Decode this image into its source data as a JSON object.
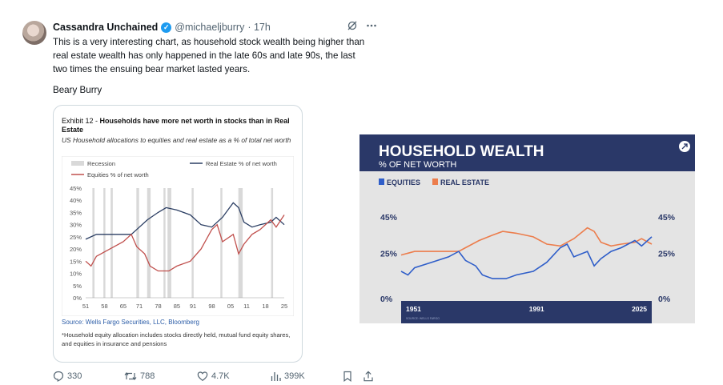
{
  "tweet": {
    "author_name": "Cassandra Unchained",
    "handle": "@michaeljburry",
    "time": "· 17h",
    "text": "This is a very interesting chart, as household stock wealth being higher than\nreal estate wealth has only happened in the late 60s and late 90s, the last\ntwo times the ensuing bear market lasted years.",
    "signoff": "Beary Burry",
    "icons": [
      "verified-badge-icon",
      "grok-icon",
      "more-icon"
    ]
  },
  "exhibit": {
    "label": "Exhibit 12 - ",
    "title": "Households have more net worth in stocks than in Real Estate",
    "subtitle": "US Household allocations to equities and real estate as a % of total net worth",
    "source": "Source: Wells Fargo Securities, LLC, Bloomberg",
    "note": "*Household equity allocation includes stocks directly held, mutual fund equity shares, and equities in insurance and pensions"
  },
  "actions": {
    "replies": "330",
    "reposts": "788",
    "likes": "4.7K",
    "views": "399K"
  },
  "chart_data": [
    {
      "type": "line",
      "legend": [
        "Recession",
        "Real Estate % of net worth",
        "Equities % of net worth"
      ],
      "legend_placement": "top",
      "colors": {
        "real_estate": "#2b3e63",
        "equities": "#c0504d",
        "recession": "#d9d9d9"
      },
      "x_ticks": [
        "51",
        "58",
        "65",
        "71",
        "78",
        "85",
        "91",
        "98",
        "05",
        "11",
        "18",
        "25"
      ],
      "y_ticks": [
        "45%",
        "40%",
        "35%",
        "30%",
        "25%",
        "20%",
        "15%",
        "10%",
        "5%",
        "0%"
      ],
      "xlim": [
        1951,
        2025
      ],
      "ylim": [
        0,
        45
      ],
      "grid": false,
      "recessions": [
        [
          1953.5,
          1954.3
        ],
        [
          1957.6,
          1958.3
        ],
        [
          1960.3,
          1961.1
        ],
        [
          1969.9,
          1970.9
        ],
        [
          1973.9,
          1975.2
        ],
        [
          1980.0,
          1980.6
        ],
        [
          1981.5,
          1982.9
        ],
        [
          1990.5,
          1991.2
        ],
        [
          2001.2,
          2001.9
        ],
        [
          2007.9,
          2009.5
        ],
        [
          2020.1,
          2020.4
        ]
      ],
      "series": [
        {
          "name": "Real Estate % of net worth",
          "x": [
            1951,
            1955,
            1960,
            1965,
            1968,
            1970,
            1974,
            1978,
            1981,
            1985,
            1990,
            1994,
            1998,
            2002,
            2006,
            2008,
            2010,
            2013,
            2016,
            2020,
            2022,
            2025
          ],
          "y": [
            24,
            26,
            26,
            26,
            26,
            28,
            32,
            35,
            37,
            36,
            34,
            30,
            29,
            33,
            39,
            37,
            31,
            29,
            30,
            31,
            33,
            30
          ]
        },
        {
          "name": "Equities % of net worth",
          "x": [
            1951,
            1953,
            1955,
            1960,
            1965,
            1968,
            1970,
            1973,
            1975,
            1978,
            1982,
            1985,
            1990,
            1994,
            1998,
            2000,
            2002,
            2006,
            2008,
            2010,
            2013,
            2016,
            2020,
            2022,
            2025
          ],
          "y": [
            15,
            13,
            17,
            20,
            23,
            26,
            21,
            18,
            13,
            11,
            11,
            13,
            15,
            20,
            28,
            30,
            23,
            26,
            18,
            22,
            26,
            28,
            32,
            29,
            34
          ]
        }
      ]
    },
    {
      "type": "line",
      "title": "HOUSEHOLD WEALTH",
      "subtitle": "% OF NET WORTH",
      "legend": [
        "EQUITIES",
        "REAL ESTATE"
      ],
      "legend_placement": "top-left",
      "source_text": "SOURCE: WELLS FARGO",
      "colors": {
        "equities": "#2f5ec9",
        "real_estate": "#ec7d4c",
        "header_bg": "#2a3868",
        "plot_bg": "#e4e4e4"
      },
      "x_ticks": [
        "1951",
        "1991",
        "2025"
      ],
      "y_ticks": [
        "45%",
        "25%",
        "0%"
      ],
      "xlim": [
        1951,
        2025
      ],
      "ylim": [
        0,
        45
      ],
      "series": [
        {
          "name": "EQUITIES",
          "x": [
            1951,
            1953,
            1955,
            1960,
            1965,
            1968,
            1970,
            1973,
            1975,
            1978,
            1982,
            1985,
            1990,
            1994,
            1998,
            2000,
            2002,
            2006,
            2008,
            2010,
            2013,
            2016,
            2020,
            2022,
            2025
          ],
          "y": [
            15,
            13,
            17,
            20,
            23,
            26,
            21,
            18,
            13,
            11,
            11,
            13,
            15,
            20,
            28,
            30,
            23,
            26,
            18,
            22,
            26,
            28,
            32,
            29,
            34
          ]
        },
        {
          "name": "REAL ESTATE",
          "x": [
            1951,
            1955,
            1960,
            1965,
            1968,
            1970,
            1974,
            1978,
            1981,
            1985,
            1990,
            1994,
            1998,
            2002,
            2006,
            2008,
            2010,
            2013,
            2016,
            2020,
            2022,
            2025
          ],
          "y": [
            24,
            26,
            26,
            26,
            26,
            28,
            32,
            35,
            37,
            36,
            34,
            30,
            29,
            33,
            39,
            37,
            31,
            29,
            30,
            31,
            33,
            30
          ]
        }
      ]
    }
  ]
}
